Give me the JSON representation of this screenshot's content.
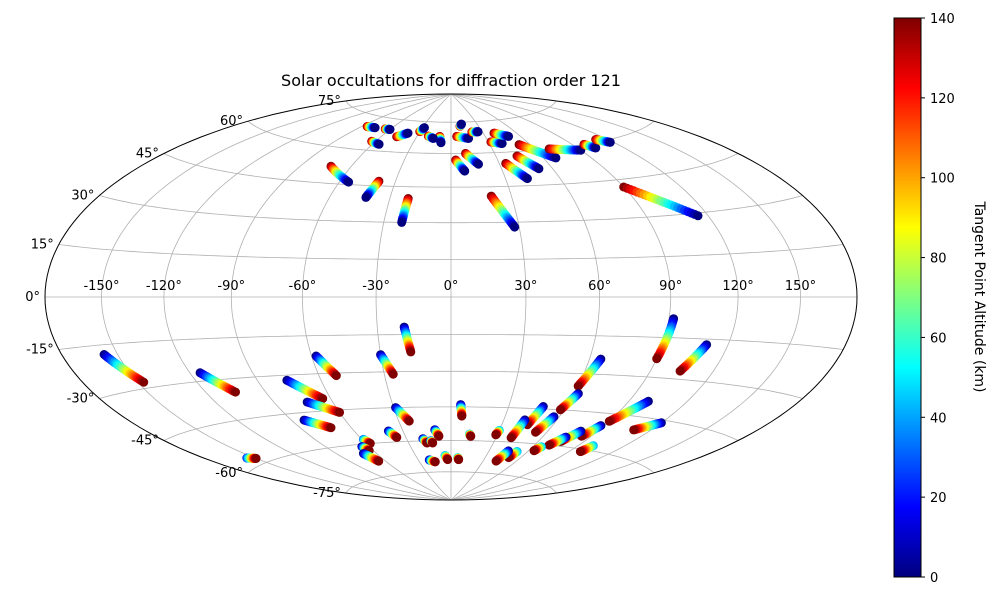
{
  "chart_data": {
    "type": "scatter",
    "projection": "hammer",
    "title": "Solar occultations for diffraction order 121",
    "grid": true,
    "lon_ticks": [
      {
        "value": -150,
        "label": "-150°"
      },
      {
        "value": -120,
        "label": "-120°"
      },
      {
        "value": -90,
        "label": "-90°"
      },
      {
        "value": -60,
        "label": "-60°"
      },
      {
        "value": -30,
        "label": "-30°"
      },
      {
        "value": 0,
        "label": "0°"
      },
      {
        "value": 30,
        "label": "30°"
      },
      {
        "value": 60,
        "label": "60°"
      },
      {
        "value": 90,
        "label": "90°"
      },
      {
        "value": 120,
        "label": "120°"
      },
      {
        "value": 150,
        "label": "150°"
      }
    ],
    "lat_ticks": [
      {
        "value": 75,
        "label": "75°"
      },
      {
        "value": 60,
        "label": "60°"
      },
      {
        "value": 45,
        "label": "45°"
      },
      {
        "value": 30,
        "label": "30°"
      },
      {
        "value": 15,
        "label": "15°"
      },
      {
        "value": 0,
        "label": "0°"
      },
      {
        "value": -15,
        "label": "-15°"
      },
      {
        "value": -30,
        "label": "-30°"
      },
      {
        "value": -45,
        "label": "-45°"
      },
      {
        "value": -60,
        "label": "-60°"
      },
      {
        "value": -75,
        "label": "-75°"
      }
    ],
    "colorbar": {
      "label": "Tangent Point Altitude (km)",
      "colormap": "jet",
      "range": [
        0,
        140
      ],
      "ticks": [
        "0",
        "20",
        "40",
        "60",
        "80",
        "100",
        "120",
        "140"
      ]
    },
    "tracks": [
      {
        "lon": [
          -157,
          -147
        ],
        "lat": [
          -18,
          -28
        ],
        "alt": [
          0,
          140
        ]
      },
      {
        "lon": [
          -115,
          -105
        ],
        "lat": [
          -27,
          -35
        ],
        "alt": [
          0,
          140
        ]
      },
      {
        "lon": [
          -76,
          -64
        ],
        "lat": [
          -32,
          -40
        ],
        "alt": [
          0,
          140
        ]
      },
      {
        "lon": [
          -58,
          -52
        ],
        "lat": [
          -23,
          -31
        ],
        "alt": [
          0,
          140
        ]
      },
      {
        "lon": [
          -30,
          -26
        ],
        "lat": [
          -23,
          -31
        ],
        "alt": [
          0,
          140
        ]
      },
      {
        "lon": [
          -19,
          -17
        ],
        "lat": [
          -12,
          -22
        ],
        "alt": [
          0,
          140
        ]
      },
      {
        "lon": [
          -73,
          -60
        ],
        "lat": [
          -41,
          -46
        ],
        "alt": [
          0,
          140
        ]
      },
      {
        "lon": [
          -83,
          -72
        ],
        "lat": [
          -48,
          -52
        ],
        "alt": [
          0,
          140
        ]
      },
      {
        "lon": [
          -29,
          -24
        ],
        "lat": [
          -45,
          -51
        ],
        "alt": [
          0,
          140
        ]
      },
      {
        "lon": [
          -39,
          -36
        ],
        "lat": [
          -55,
          -58
        ],
        "alt": [
          0,
          140
        ]
      },
      {
        "lon": [
          5,
          6
        ],
        "lat": [
          -44,
          -49
        ],
        "alt": [
          0,
          140
        ]
      },
      {
        "lon": [
          92,
          90
        ],
        "lat": [
          -8,
          -23
        ],
        "alt": [
          0,
          140
        ]
      },
      {
        "lon": [
          110,
          104
        ],
        "lat": [
          -17,
          -27
        ],
        "alt": [
          0,
          140
        ]
      },
      {
        "lon": [
          65,
          60
        ],
        "lat": [
          -24,
          -35
        ],
        "alt": [
          0,
          140
        ]
      },
      {
        "lon": [
          62,
          58
        ],
        "lat": [
          -38,
          -45
        ],
        "alt": [
          0,
          140
        ]
      },
      {
        "lon": [
          48,
          45
        ],
        "lat": [
          -44,
          -52
        ],
        "alt": [
          0,
          140
        ]
      },
      {
        "lon": [
          42,
          40
        ],
        "lat": [
          -50,
          -58
        ],
        "alt": [
          0,
          140
        ]
      },
      {
        "lon": [
          57,
          53
        ],
        "lat": [
          -48,
          -55
        ],
        "alt": [
          0,
          140
        ]
      },
      {
        "lon": [
          100,
          90
        ],
        "lat": [
          -39,
          -48
        ],
        "alt": [
          0,
          140
        ]
      },
      {
        "lon": [
          88,
          84
        ],
        "lat": [
          -50,
          -55
        ],
        "alt": [
          0,
          140
        ]
      },
      {
        "lon": [
          120,
          110
        ],
        "lat": [
          -46,
          -50
        ],
        "alt": [
          0,
          140
        ]
      },
      {
        "lon": [
          80,
          75
        ],
        "lat": [
          -53,
          -58
        ],
        "alt": [
          0,
          140
        ]
      },
      {
        "lon": [
          75,
          70
        ],
        "lat": [
          -56,
          -60
        ],
        "alt": [
          0,
          140
        ]
      },
      {
        "lon": [
          -155,
          -150
        ],
        "lat": [
          -57,
          -58
        ],
        "alt": [
          20,
          140
        ]
      },
      {
        "lon": [
          -10,
          -8
        ],
        "lat": [
          -55,
          -58
        ],
        "alt": [
          0,
          140
        ]
      },
      {
        "lon": [
          12,
          13
        ],
        "lat": [
          -57,
          -58
        ],
        "alt": [
          40,
          140
        ]
      },
      {
        "lon": [
          30,
          29
        ],
        "lat": [
          -55,
          -57
        ],
        "alt": [
          40,
          140
        ]
      },
      {
        "lon": [
          -19,
          -17
        ],
        "lat": [
          -59,
          -61
        ],
        "alt": [
          0,
          140
        ]
      },
      {
        "lon": [
          -14,
          -13
        ],
        "lat": [
          -60,
          -61
        ],
        "alt": [
          20,
          140
        ]
      },
      {
        "lon": [
          -59,
          -57
        ],
        "lat": [
          -58,
          -60
        ],
        "alt": [
          30,
          140
        ]
      },
      {
        "lon": [
          -65,
          -63
        ],
        "lat": [
          -61,
          -63
        ],
        "alt": [
          0,
          140
        ]
      },
      {
        "lon": [
          -70,
          -66
        ],
        "lat": [
          -64,
          -68
        ],
        "alt": [
          0,
          140
        ]
      },
      {
        "lon": [
          -20,
          -15
        ],
        "lat": [
          -69,
          -70
        ],
        "alt": [
          0,
          140
        ]
      },
      {
        "lon": [
          -5,
          -3
        ],
        "lat": [
          -67,
          -69
        ],
        "alt": [
          40,
          140
        ]
      },
      {
        "lon": [
          6,
          7
        ],
        "lat": [
          -68,
          -69
        ],
        "alt": [
          40,
          140
        ]
      },
      {
        "lon": [
          52,
          50
        ],
        "lat": [
          -64,
          -67
        ],
        "alt": [
          40,
          140
        ]
      },
      {
        "lon": [
          45,
          42
        ],
        "lat": [
          -64,
          -69
        ],
        "alt": [
          0,
          140
        ]
      },
      {
        "lon": [
          66,
          64
        ],
        "lat": [
          -61,
          -63
        ],
        "alt": [
          40,
          140
        ]
      },
      {
        "lon": [
          100,
          98
        ],
        "lat": [
          -58,
          -61
        ],
        "alt": [
          40,
          140
        ]
      },
      {
        "lon": [
          -72,
          -55
        ],
        "lat": [
          52,
          46
        ],
        "alt": [
          140,
          0
        ]
      },
      {
        "lon": [
          -39,
          -42
        ],
        "lat": [
          47,
          40
        ],
        "alt": [
          140,
          0
        ]
      },
      {
        "lon": [
          -21,
          -22
        ],
        "lat": [
          40,
          30
        ],
        "alt": [
          140,
          0
        ]
      },
      {
        "lon": [
          -85,
          -76
        ],
        "lat": [
          70,
          70
        ],
        "alt": [
          140,
          0
        ]
      },
      {
        "lon": [
          -63,
          -55
        ],
        "lat": [
          64,
          63
        ],
        "alt": [
          140,
          0
        ]
      },
      {
        "lon": [
          -47,
          -40
        ],
        "lat": [
          67,
          69
        ],
        "alt": [
          140,
          0
        ]
      },
      {
        "lon": [
          -30,
          -28
        ],
        "lat": [
          70,
          72
        ],
        "alt": [
          140,
          0
        ]
      },
      {
        "lon": [
          -10,
          -8
        ],
        "lat": [
          68,
          65
        ],
        "alt": [
          140,
          0
        ]
      },
      {
        "lon": [
          5,
          15
        ],
        "lat": [
          68,
          67
        ],
        "alt": [
          140,
          0
        ]
      },
      {
        "lon": [
          10,
          17
        ],
        "lat": [
          60,
          55
        ],
        "alt": [
          140,
          0
        ]
      },
      {
        "lon": [
          3,
          8
        ],
        "lat": [
          57,
          52
        ],
        "alt": [
          140,
          0
        ]
      },
      {
        "lon": [
          20,
          28
        ],
        "lat": [
          41,
          28
        ],
        "alt": [
          140,
          0
        ]
      },
      {
        "lon": [
          34,
          42
        ],
        "lat": [
          55,
          48
        ],
        "alt": [
          140,
          0
        ]
      },
      {
        "lon": [
          44,
          52
        ],
        "lat": [
          58,
          52
        ],
        "alt": [
          140,
          0
        ]
      },
      {
        "lon": [
          52,
          68
        ],
        "lat": [
          63,
          56
        ],
        "alt": [
          140,
          0
        ]
      },
      {
        "lon": [
          70,
          90
        ],
        "lat": [
          60,
          58
        ],
        "alt": [
          140,
          0
        ]
      },
      {
        "lon": [
          90,
          115
        ],
        "lat": [
          42,
          29
        ],
        "alt": [
          140,
          0
        ]
      },
      {
        "lon": [
          32,
          40
        ],
        "lat": [
          65,
          64
        ],
        "alt": [
          140,
          0
        ]
      },
      {
        "lon": [
          20,
          26
        ],
        "lat": [
          70,
          70
        ],
        "alt": [
          140,
          0
        ]
      },
      {
        "lon": [
          40,
          50
        ],
        "lat": [
          69,
          67
        ],
        "alt": [
          140,
          0
        ]
      },
      {
        "lon": [
          98,
          102
        ],
        "lat": [
          60,
          58
        ],
        "alt": [
          140,
          0
        ]
      },
      {
        "lon": [
          112,
          118
        ],
        "lat": [
          61,
          59
        ],
        "alt": [
          140,
          0
        ]
      },
      {
        "lon": [
          -20,
          -15
        ],
        "lat": [
          68,
          67
        ],
        "alt": [
          140,
          0
        ]
      },
      {
        "lon": [
          10,
          12
        ],
        "lat": [
          73,
          74
        ],
        "alt": [
          140,
          0
        ]
      },
      {
        "lon": [
          -65,
          -60
        ],
        "lat": [
          70,
          70
        ],
        "alt": [
          140,
          0
        ]
      }
    ]
  }
}
